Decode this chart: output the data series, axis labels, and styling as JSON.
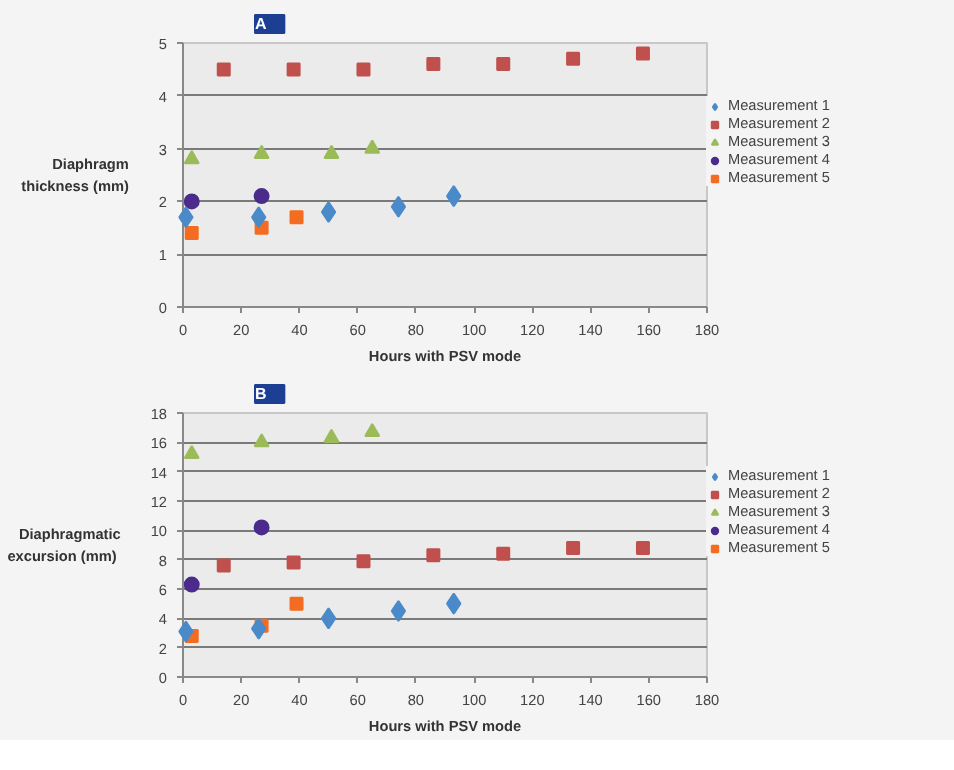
{
  "chart_data": [
    {
      "type": "scatter",
      "title": "A",
      "xlabel": "Hours with PSV mode",
      "ylabel": "Diaphragm\nthickness (mm)",
      "xlim": [
        0,
        180
      ],
      "xticks": [
        0,
        20,
        40,
        60,
        80,
        100,
        120,
        140,
        160,
        180
      ],
      "ylim": [
        0,
        5
      ],
      "yticks": [
        0,
        1,
        2,
        3,
        4,
        5
      ],
      "grid": "y",
      "legend": "right",
      "series": [
        {
          "name": "Measurement 1",
          "color": "#4a8ac9",
          "marker": "diamond",
          "x": [
            1,
            26,
            50,
            74,
            93
          ],
          "values": [
            1.7,
            1.7,
            1.8,
            1.9,
            2.1
          ]
        },
        {
          "name": "Measurement 2",
          "color": "#c0504d",
          "marker": "square",
          "x": [
            14,
            38,
            62,
            86,
            110,
            134,
            158
          ],
          "values": [
            4.5,
            4.5,
            4.5,
            4.6,
            4.6,
            4.7,
            4.8
          ]
        },
        {
          "name": "Measurement 3",
          "color": "#9bbb59",
          "marker": "triangle",
          "x": [
            3,
            27,
            51,
            65
          ],
          "values": [
            2.8,
            2.9,
            2.9,
            3.0
          ]
        },
        {
          "name": "Measurement 4",
          "color": "#4b2c8c",
          "marker": "circle",
          "x": [
            3,
            27
          ],
          "values": [
            2.0,
            2.1
          ]
        },
        {
          "name": "Measurement 5",
          "color": "#f36c21",
          "marker": "square",
          "x": [
            3,
            27,
            39
          ],
          "values": [
            1.4,
            1.5,
            1.7
          ]
        }
      ]
    },
    {
      "type": "scatter",
      "title": "B",
      "xlabel": "Hours with PSV mode",
      "ylabel": "Diaphragmatic\nexcursion  (mm)",
      "xlim": [
        0,
        180
      ],
      "xticks": [
        0,
        20,
        40,
        60,
        80,
        100,
        120,
        140,
        160,
        180
      ],
      "ylim": [
        0,
        18
      ],
      "yticks": [
        0,
        2,
        4,
        6,
        8,
        10,
        12,
        14,
        16,
        18
      ],
      "grid": "y",
      "legend": "right",
      "series": [
        {
          "name": "Measurement 1",
          "color": "#4a8ac9",
          "marker": "diamond",
          "x": [
            1,
            26,
            50,
            74,
            93
          ],
          "values": [
            3.1,
            3.3,
            4.0,
            4.5,
            5.0
          ]
        },
        {
          "name": "Measurement 2",
          "color": "#c0504d",
          "marker": "square",
          "x": [
            14,
            38,
            62,
            86,
            110,
            134,
            158
          ],
          "values": [
            7.6,
            7.8,
            7.9,
            8.3,
            8.4,
            8.8,
            8.8
          ]
        },
        {
          "name": "Measurement 3",
          "color": "#9bbb59",
          "marker": "triangle",
          "x": [
            3,
            27,
            51,
            65
          ],
          "values": [
            15.2,
            16.0,
            16.3,
            16.7
          ]
        },
        {
          "name": "Measurement 4",
          "color": "#4b2c8c",
          "marker": "circle",
          "x": [
            3,
            27
          ],
          "values": [
            6.3,
            10.2
          ]
        },
        {
          "name": "Measurement 5",
          "color": "#f36c21",
          "marker": "square",
          "x": [
            3,
            27,
            39
          ],
          "values": [
            2.8,
            3.5,
            5.0
          ]
        }
      ]
    }
  ]
}
